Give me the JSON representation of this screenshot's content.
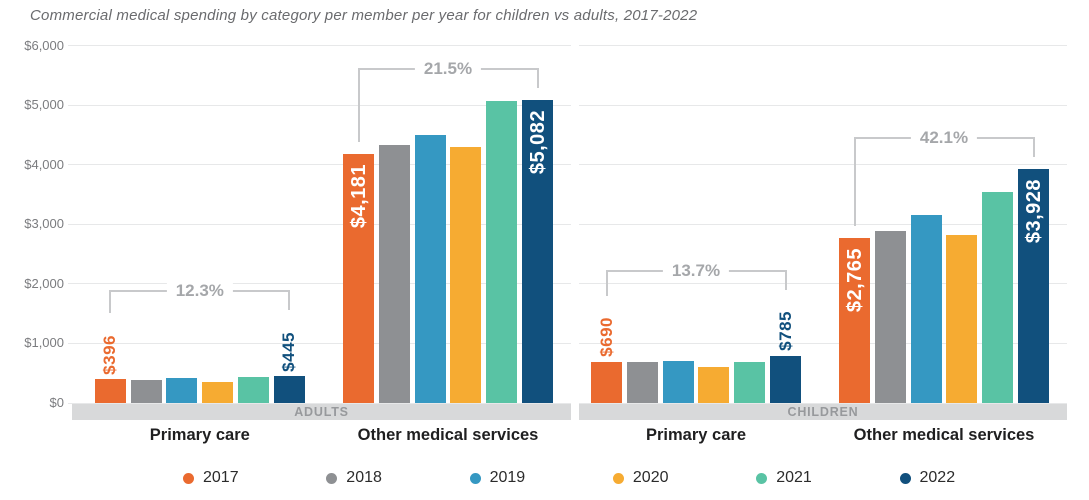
{
  "title": "Commercial medical spending by category per member per year for children vs adults, 2017-2022",
  "chart_data": {
    "type": "bar",
    "title": "Commercial medical spending by category per member per year for children vs adults, 2017-2022",
    "ylim": [
      0,
      6000
    ],
    "grid": true,
    "legend_position": "bottom",
    "yticks": [
      {
        "value": 6000,
        "label": "$6,000"
      },
      {
        "value": 5000,
        "label": "$5,000"
      },
      {
        "value": 4000,
        "label": "$4,000"
      },
      {
        "value": 3000,
        "label": "$3,000"
      },
      {
        "value": 2000,
        "label": "$2,000"
      },
      {
        "value": 1000,
        "label": "$1,000"
      },
      {
        "value": 0,
        "label": "$0"
      }
    ],
    "series": [
      {
        "name": "2017",
        "color": "#ea6a2f"
      },
      {
        "name": "2018",
        "color": "#8e9093"
      },
      {
        "name": "2019",
        "color": "#3598c2"
      },
      {
        "name": "2020",
        "color": "#f6ab32"
      },
      {
        "name": "2021",
        "color": "#59c3a4"
      },
      {
        "name": "2022",
        "color": "#11507d"
      }
    ],
    "panels": [
      {
        "label": "ADULTS",
        "groups": [
          {
            "label": "Primary care",
            "values": [
              396,
              390,
              412,
              345,
              435,
              445
            ],
            "bar_labels": [
              "$396",
              null,
              null,
              null,
              null,
              "$445"
            ],
            "change_label": "12.3%"
          },
          {
            "label": "Other medical services",
            "values": [
              4181,
              4330,
              4500,
              4290,
              5070,
              5082
            ],
            "bar_labels": [
              "$4,181",
              null,
              null,
              null,
              null,
              "$5,082"
            ],
            "change_label": "21.5%"
          }
        ]
      },
      {
        "label": "CHILDREN",
        "groups": [
          {
            "label": "Primary care",
            "values": [
              690,
              685,
              710,
              600,
              685,
              785
            ],
            "bar_labels": [
              "$690",
              null,
              null,
              null,
              null,
              "$785"
            ],
            "change_label": "13.7%"
          },
          {
            "label": "Other medical services",
            "values": [
              2765,
              2880,
              3150,
              2820,
              3540,
              3928
            ],
            "bar_labels": [
              "$2,765",
              null,
              null,
              null,
              null,
              "$3,928"
            ],
            "change_label": "42.1%"
          }
        ]
      }
    ]
  },
  "colors": {
    "grid": "#e7e8e9",
    "axis_text": "#7b7c7f",
    "title_text": "#6a6b6e",
    "bracket": "#c8c9cb",
    "pct_text": "#a5a7aa",
    "band_bg": "#d8d9da",
    "band_text": "#97999c",
    "category_text": "#1f1f20",
    "legend_text": "#2b2b2b",
    "bar_label_inside": "#ffffff"
  }
}
